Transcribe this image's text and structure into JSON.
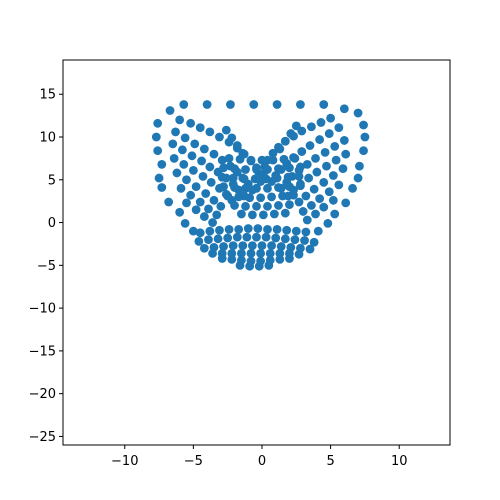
{
  "chart_data": {
    "type": "scatter",
    "title": "",
    "xlabel": "",
    "ylabel": "",
    "xlim": [
      -14.5,
      13.7
    ],
    "ylim": [
      -26,
      19
    ],
    "x_ticks": [
      -10,
      -5,
      0,
      5,
      10
    ],
    "x_tick_labels": [
      "−10",
      "−5",
      "0",
      "5",
      "10"
    ],
    "y_ticks": [
      15,
      10,
      5,
      0,
      -5,
      -10,
      -15,
      -20,
      -25
    ],
    "y_tick_labels": [
      "15",
      "10",
      "5",
      "0",
      "−5",
      "−10",
      "−15",
      "−20",
      "−25"
    ],
    "grid": false,
    "legend": "none",
    "marker_color": "#1f77b4",
    "series": [
      {
        "points": [
          [
            -5.7,
            13.8
          ],
          [
            -4.0,
            13.8
          ],
          [
            -2.3,
            13.8
          ],
          [
            -0.6,
            13.8
          ],
          [
            1.1,
            13.8
          ],
          [
            2.8,
            13.8
          ],
          [
            4.5,
            13.8
          ],
          [
            -6.7,
            13.1
          ],
          [
            -7.6,
            11.6
          ],
          [
            -7.7,
            10.0
          ],
          [
            -7.6,
            8.4
          ],
          [
            -7.3,
            6.8
          ],
          [
            -7.5,
            5.2
          ],
          [
            -7.3,
            4.1
          ],
          [
            -6.8,
            2.4
          ],
          [
            -6.0,
            1.2
          ],
          [
            -5.6,
            -0.1
          ],
          [
            -5.0,
            -1.0
          ],
          [
            6.0,
            13.3
          ],
          [
            7.0,
            12.8
          ],
          [
            7.4,
            11.4
          ],
          [
            7.5,
            10.0
          ],
          [
            7.4,
            8.4
          ],
          [
            7.1,
            6.6
          ],
          [
            7.0,
            5.2
          ],
          [
            6.6,
            4.0
          ],
          [
            6.1,
            2.3
          ],
          [
            5.3,
            1.0
          ],
          [
            4.8,
            -0.1
          ],
          [
            4.1,
            -1.0
          ],
          [
            -6.0,
            12.0
          ],
          [
            -5.2,
            11.6
          ],
          [
            -4.5,
            11.1
          ],
          [
            -3.8,
            10.6
          ],
          [
            -3.1,
            10.0
          ],
          [
            -2.4,
            9.4
          ],
          [
            -1.8,
            8.7
          ],
          [
            -1.3,
            8.0
          ],
          [
            -0.8,
            7.2
          ],
          [
            -0.4,
            6.4
          ],
          [
            -0.2,
            5.6
          ],
          [
            -0.1,
            4.8
          ],
          [
            -6.3,
            10.6
          ],
          [
            -5.6,
            9.9
          ],
          [
            -4.9,
            9.2
          ],
          [
            -4.2,
            8.6
          ],
          [
            -3.5,
            8.0
          ],
          [
            -2.9,
            7.3
          ],
          [
            -2.3,
            6.6
          ],
          [
            -1.8,
            5.9
          ],
          [
            -1.4,
            5.2
          ],
          [
            -1.0,
            4.5
          ],
          [
            -0.7,
            3.8
          ],
          [
            -6.5,
            9.2
          ],
          [
            -5.8,
            8.5
          ],
          [
            -5.1,
            7.8
          ],
          [
            -4.4,
            7.2
          ],
          [
            -3.8,
            6.5
          ],
          [
            -3.2,
            5.9
          ],
          [
            -2.6,
            5.2
          ],
          [
            -2.1,
            4.5
          ],
          [
            -1.7,
            3.8
          ],
          [
            -1.3,
            3.1
          ],
          [
            -6.4,
            7.5
          ],
          [
            -5.7,
            6.8
          ],
          [
            -5.0,
            6.1
          ],
          [
            -4.3,
            5.4
          ],
          [
            -3.7,
            4.7
          ],
          [
            -3.1,
            4.0
          ],
          [
            -2.6,
            3.3
          ],
          [
            -2.2,
            2.6
          ],
          [
            -6.2,
            5.8
          ],
          [
            -5.5,
            5.0
          ],
          [
            -4.8,
            4.2
          ],
          [
            -4.1,
            3.4
          ],
          [
            -3.5,
            2.6
          ],
          [
            -3.0,
            1.9
          ],
          [
            -5.9,
            4.0
          ],
          [
            -5.2,
            3.2
          ],
          [
            -4.5,
            2.4
          ],
          [
            -3.9,
            1.6
          ],
          [
            -3.3,
            0.9
          ],
          [
            -5.5,
            2.3
          ],
          [
            -4.8,
            1.5
          ],
          [
            -4.2,
            0.7
          ],
          [
            -3.6,
            0.0
          ],
          [
            5.0,
            12.2
          ],
          [
            4.3,
            11.7
          ],
          [
            3.6,
            11.2
          ],
          [
            2.9,
            10.7
          ],
          [
            2.3,
            10.1
          ],
          [
            1.7,
            9.5
          ],
          [
            1.2,
            8.8
          ],
          [
            0.8,
            8.1
          ],
          [
            0.4,
            7.3
          ],
          [
            0.2,
            6.5
          ],
          [
            0.1,
            5.7
          ],
          [
            5.6,
            11.1
          ],
          [
            4.9,
            10.4
          ],
          [
            4.2,
            9.7
          ],
          [
            3.5,
            9.0
          ],
          [
            2.9,
            8.3
          ],
          [
            2.3,
            7.6
          ],
          [
            1.8,
            6.9
          ],
          [
            1.4,
            6.2
          ],
          [
            1.0,
            5.5
          ],
          [
            0.7,
            4.8
          ],
          [
            6.0,
            9.6
          ],
          [
            5.3,
            8.9
          ],
          [
            4.6,
            8.2
          ],
          [
            3.9,
            7.5
          ],
          [
            3.3,
            6.8
          ],
          [
            2.7,
            6.1
          ],
          [
            2.2,
            5.4
          ],
          [
            1.8,
            4.7
          ],
          [
            1.4,
            4.0
          ],
          [
            6.1,
            8.0
          ],
          [
            5.4,
            7.3
          ],
          [
            4.7,
            6.6
          ],
          [
            4.0,
            5.9
          ],
          [
            3.4,
            5.2
          ],
          [
            2.8,
            4.5
          ],
          [
            2.3,
            3.8
          ],
          [
            1.9,
            3.1
          ],
          [
            5.9,
            6.3
          ],
          [
            5.2,
            5.5
          ],
          [
            4.5,
            4.7
          ],
          [
            3.8,
            3.9
          ],
          [
            3.2,
            3.1
          ],
          [
            2.7,
            2.4
          ],
          [
            5.6,
            4.4
          ],
          [
            4.9,
            3.6
          ],
          [
            4.2,
            2.8
          ],
          [
            3.6,
            2.0
          ],
          [
            3.0,
            1.3
          ],
          [
            5.2,
            2.6
          ],
          [
            4.5,
            1.8
          ],
          [
            3.9,
            1.0
          ],
          [
            3.3,
            0.3
          ],
          [
            -2.6,
            10.8
          ],
          [
            -2.2,
            9.9
          ],
          [
            -1.8,
            9.0
          ],
          [
            -1.4,
            8.1
          ],
          [
            2.5,
            11.3
          ],
          [
            2.1,
            10.4
          ],
          [
            1.7,
            9.5
          ],
          [
            1.3,
            8.6
          ],
          [
            -2.4,
            7.5
          ],
          [
            -1.6,
            7.4
          ],
          [
            -0.8,
            7.3
          ],
          [
            0.0,
            7.3
          ],
          [
            0.8,
            7.3
          ],
          [
            1.6,
            7.4
          ],
          [
            2.4,
            7.5
          ],
          [
            -2.8,
            6.4
          ],
          [
            -2.0,
            6.3
          ],
          [
            -1.2,
            6.2
          ],
          [
            -0.4,
            6.2
          ],
          [
            0.4,
            6.2
          ],
          [
            1.2,
            6.3
          ],
          [
            2.0,
            6.4
          ],
          [
            2.8,
            6.5
          ],
          [
            -2.9,
            5.3
          ],
          [
            -2.1,
            5.2
          ],
          [
            -1.3,
            5.1
          ],
          [
            -0.5,
            5.1
          ],
          [
            0.3,
            5.1
          ],
          [
            1.1,
            5.2
          ],
          [
            1.9,
            5.3
          ],
          [
            2.7,
            5.4
          ],
          [
            -2.8,
            4.2
          ],
          [
            -2.0,
            4.1
          ],
          [
            -1.2,
            4.0
          ],
          [
            -0.4,
            4.0
          ],
          [
            0.4,
            4.0
          ],
          [
            1.2,
            4.1
          ],
          [
            2.0,
            4.2
          ],
          [
            2.8,
            4.3
          ],
          [
            -2.5,
            3.1
          ],
          [
            -1.7,
            3.0
          ],
          [
            -0.9,
            2.9
          ],
          [
            -0.1,
            2.9
          ],
          [
            0.7,
            3.0
          ],
          [
            1.5,
            3.1
          ],
          [
            2.3,
            3.2
          ],
          [
            -2.0,
            2.0
          ],
          [
            -1.2,
            1.9
          ],
          [
            -0.4,
            1.9
          ],
          [
            0.4,
            1.9
          ],
          [
            1.2,
            2.0
          ],
          [
            2.0,
            2.1
          ],
          [
            -1.5,
            1.0
          ],
          [
            -0.7,
            0.9
          ],
          [
            0.1,
            0.9
          ],
          [
            0.9,
            1.0
          ],
          [
            1.7,
            1.1
          ],
          [
            -4.5,
            -1.2
          ],
          [
            -3.8,
            -1.0
          ],
          [
            -3.1,
            -0.9
          ],
          [
            -2.4,
            -0.8
          ],
          [
            -1.7,
            -0.8
          ],
          [
            -1.0,
            -0.7
          ],
          [
            -0.3,
            -0.7
          ],
          [
            0.4,
            -0.8
          ],
          [
            1.1,
            -0.8
          ],
          [
            1.8,
            -0.9
          ],
          [
            2.5,
            -1.0
          ],
          [
            3.2,
            -1.1
          ],
          [
            -4.6,
            -2.2
          ],
          [
            -3.9,
            -2.0
          ],
          [
            -3.2,
            -1.9
          ],
          [
            -2.5,
            -1.8
          ],
          [
            -1.8,
            -1.7
          ],
          [
            -1.1,
            -1.7
          ],
          [
            -0.4,
            -1.7
          ],
          [
            0.3,
            -1.7
          ],
          [
            1.0,
            -1.8
          ],
          [
            1.7,
            -1.9
          ],
          [
            2.4,
            -2.0
          ],
          [
            3.1,
            -2.1
          ],
          [
            3.8,
            -2.3
          ],
          [
            -4.2,
            -3.0
          ],
          [
            -3.5,
            -2.9
          ],
          [
            -2.8,
            -2.8
          ],
          [
            -2.1,
            -2.7
          ],
          [
            -1.4,
            -2.7
          ],
          [
            -0.7,
            -2.7
          ],
          [
            0.0,
            -2.7
          ],
          [
            0.7,
            -2.7
          ],
          [
            1.4,
            -2.8
          ],
          [
            2.1,
            -2.9
          ],
          [
            2.8,
            -3.0
          ],
          [
            3.5,
            -3.1
          ],
          [
            -3.6,
            -3.6
          ],
          [
            -2.9,
            -3.6
          ],
          [
            -2.2,
            -3.6
          ],
          [
            -1.5,
            -3.6
          ],
          [
            -0.8,
            -3.6
          ],
          [
            -0.1,
            -3.6
          ],
          [
            0.6,
            -3.6
          ],
          [
            1.3,
            -3.6
          ],
          [
            2.0,
            -3.6
          ],
          [
            2.7,
            -3.7
          ],
          [
            -2.9,
            -4.2
          ],
          [
            -2.2,
            -4.3
          ],
          [
            -1.5,
            -4.4
          ],
          [
            -0.8,
            -4.5
          ],
          [
            -0.1,
            -4.5
          ],
          [
            0.6,
            -4.4
          ],
          [
            1.3,
            -4.3
          ],
          [
            2.0,
            -4.2
          ],
          [
            -1.6,
            -5.0
          ],
          [
            -0.9,
            -5.1
          ],
          [
            -0.2,
            -5.1
          ],
          [
            0.5,
            -5.0
          ]
        ]
      }
    ]
  }
}
